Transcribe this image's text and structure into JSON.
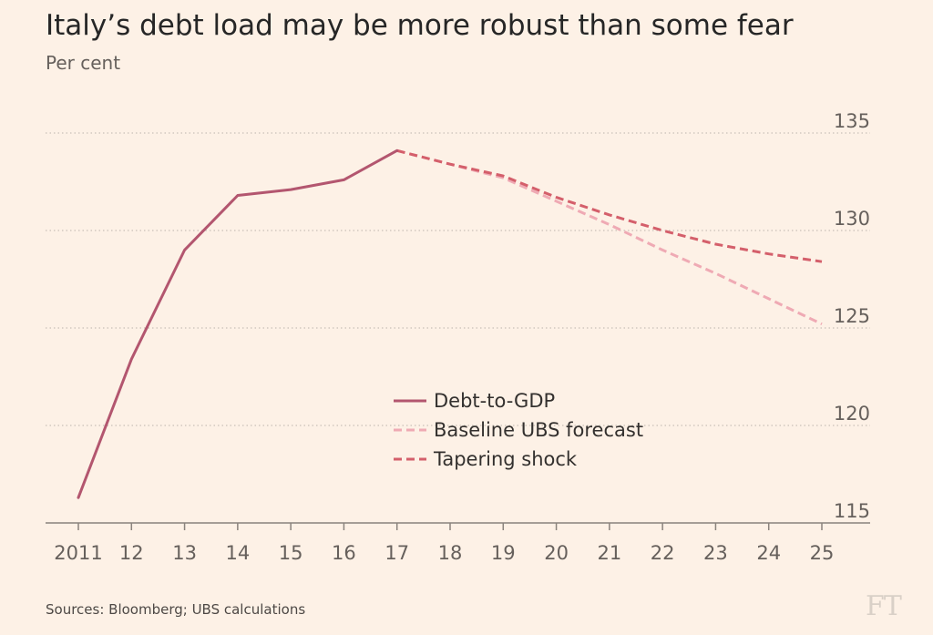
{
  "header": {
    "title": "Italy’s debt load may be more robust than some fear",
    "subtitle": "Per cent"
  },
  "footer": {
    "source": "Sources: Bloomberg; UBS calculations",
    "logo": "FT"
  },
  "colors": {
    "background": "#fdf1e6",
    "grid": "#c9c0b8",
    "axis": "#66605c",
    "debt": "#b3566f",
    "baseline": "#efaab4",
    "tapering": "#d45f6b"
  },
  "chart_data": {
    "type": "line",
    "x": [
      2011,
      2012,
      2013,
      2014,
      2015,
      2016,
      2017,
      2018,
      2019,
      2020,
      2021,
      2022,
      2023,
      2024,
      2025
    ],
    "x_tick_labels": [
      "2011",
      "12",
      "13",
      "14",
      "15",
      "16",
      "17",
      "18",
      "19",
      "20",
      "21",
      "22",
      "23",
      "24",
      "25"
    ],
    "y_ticks": [
      115,
      120,
      125,
      130,
      135
    ],
    "ylim": [
      115,
      135
    ],
    "y_axis_side": "right",
    "grid": "horizontal dotted",
    "legend_position": "center",
    "series": [
      {
        "name": "Debt-to-GDP",
        "style": "solid",
        "color": "#b3566f",
        "points": [
          [
            2011,
            116.3
          ],
          [
            2012,
            123.4
          ],
          [
            2013,
            129.0
          ],
          [
            2014,
            131.8
          ],
          [
            2015,
            132.1
          ],
          [
            2016,
            132.6
          ],
          [
            2017,
            134.1
          ]
        ]
      },
      {
        "name": "Baseline UBS forecast",
        "style": "dashed",
        "color": "#efaab4",
        "points": [
          [
            2017,
            134.1
          ],
          [
            2018,
            133.4
          ],
          [
            2019,
            132.7
          ],
          [
            2020,
            131.5
          ],
          [
            2021,
            130.3
          ],
          [
            2022,
            129.0
          ],
          [
            2023,
            127.8
          ],
          [
            2024,
            126.5
          ],
          [
            2025,
            125.2
          ]
        ]
      },
      {
        "name": "Tapering shock",
        "style": "dashed",
        "color": "#d45f6b",
        "points": [
          [
            2017,
            134.1
          ],
          [
            2018,
            133.4
          ],
          [
            2019,
            132.8
          ],
          [
            2020,
            131.7
          ],
          [
            2021,
            130.8
          ],
          [
            2022,
            130.0
          ],
          [
            2023,
            129.3
          ],
          [
            2024,
            128.8
          ],
          [
            2025,
            128.4
          ]
        ]
      }
    ]
  }
}
